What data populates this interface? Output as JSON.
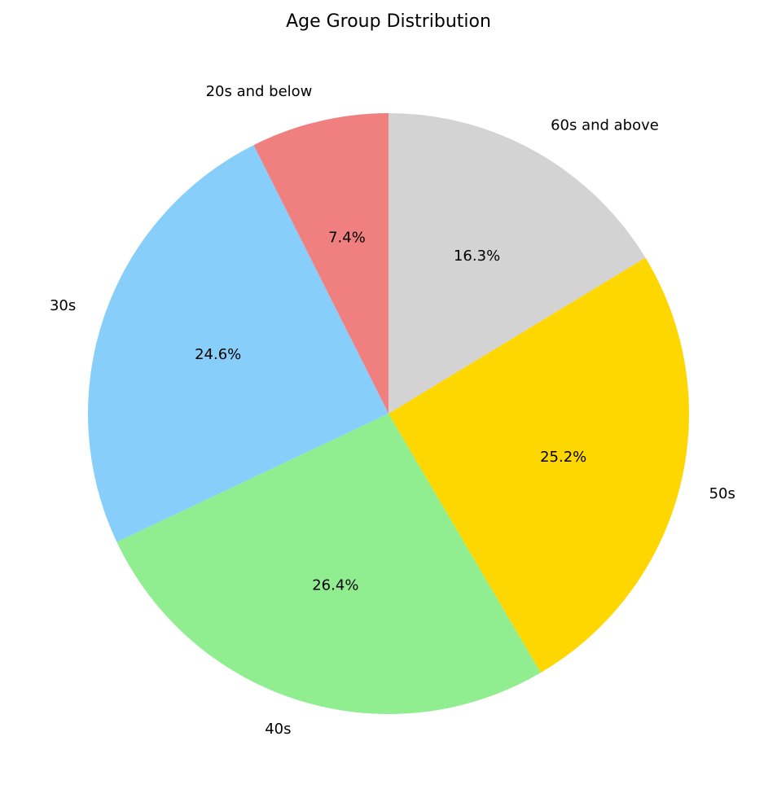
{
  "chart_data": {
    "type": "pie",
    "title": "Age Group Distribution",
    "start_angle_deg": 90,
    "direction": "counterclockwise",
    "slices": [
      {
        "label": "20s and below",
        "value": 7.4,
        "pct_text": "7.4%",
        "color": "#F08080"
      },
      {
        "label": "30s",
        "value": 24.6,
        "pct_text": "24.6%",
        "color": "#87CEFA"
      },
      {
        "label": "40s",
        "value": 26.4,
        "pct_text": "26.4%",
        "color": "#90EE90"
      },
      {
        "label": "50s",
        "value": 25.2,
        "pct_text": "25.2%",
        "color": "#FFD700"
      },
      {
        "label": "60s and above",
        "value": 16.3,
        "pct_text": "16.3%",
        "color": "#D3D3D3"
      }
    ]
  }
}
